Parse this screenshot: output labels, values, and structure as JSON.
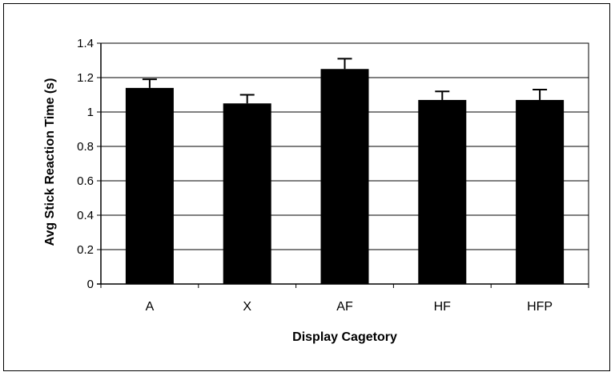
{
  "chart_data": {
    "type": "bar",
    "title": "",
    "xlabel": "Display Cagetory",
    "ylabel": "Avg Stick Reaction Time (s)",
    "categories": [
      "A",
      "X",
      "AF",
      "HF",
      "HFP"
    ],
    "values": [
      1.14,
      1.05,
      1.25,
      1.07,
      1.07
    ],
    "error_bars": [
      0.05,
      0.05,
      0.06,
      0.05,
      0.06
    ],
    "ylim": [
      0,
      1.4
    ],
    "yticks": [
      0,
      0.2,
      0.4,
      0.6,
      0.8,
      1,
      1.2,
      1.4
    ],
    "ytick_labels": [
      "0",
      "0.2",
      "0.4",
      "0.6",
      "0.8",
      "1",
      "1.2",
      "1.4"
    ],
    "grid": true,
    "bar_color": "#000000",
    "grid_color": "#000000"
  }
}
